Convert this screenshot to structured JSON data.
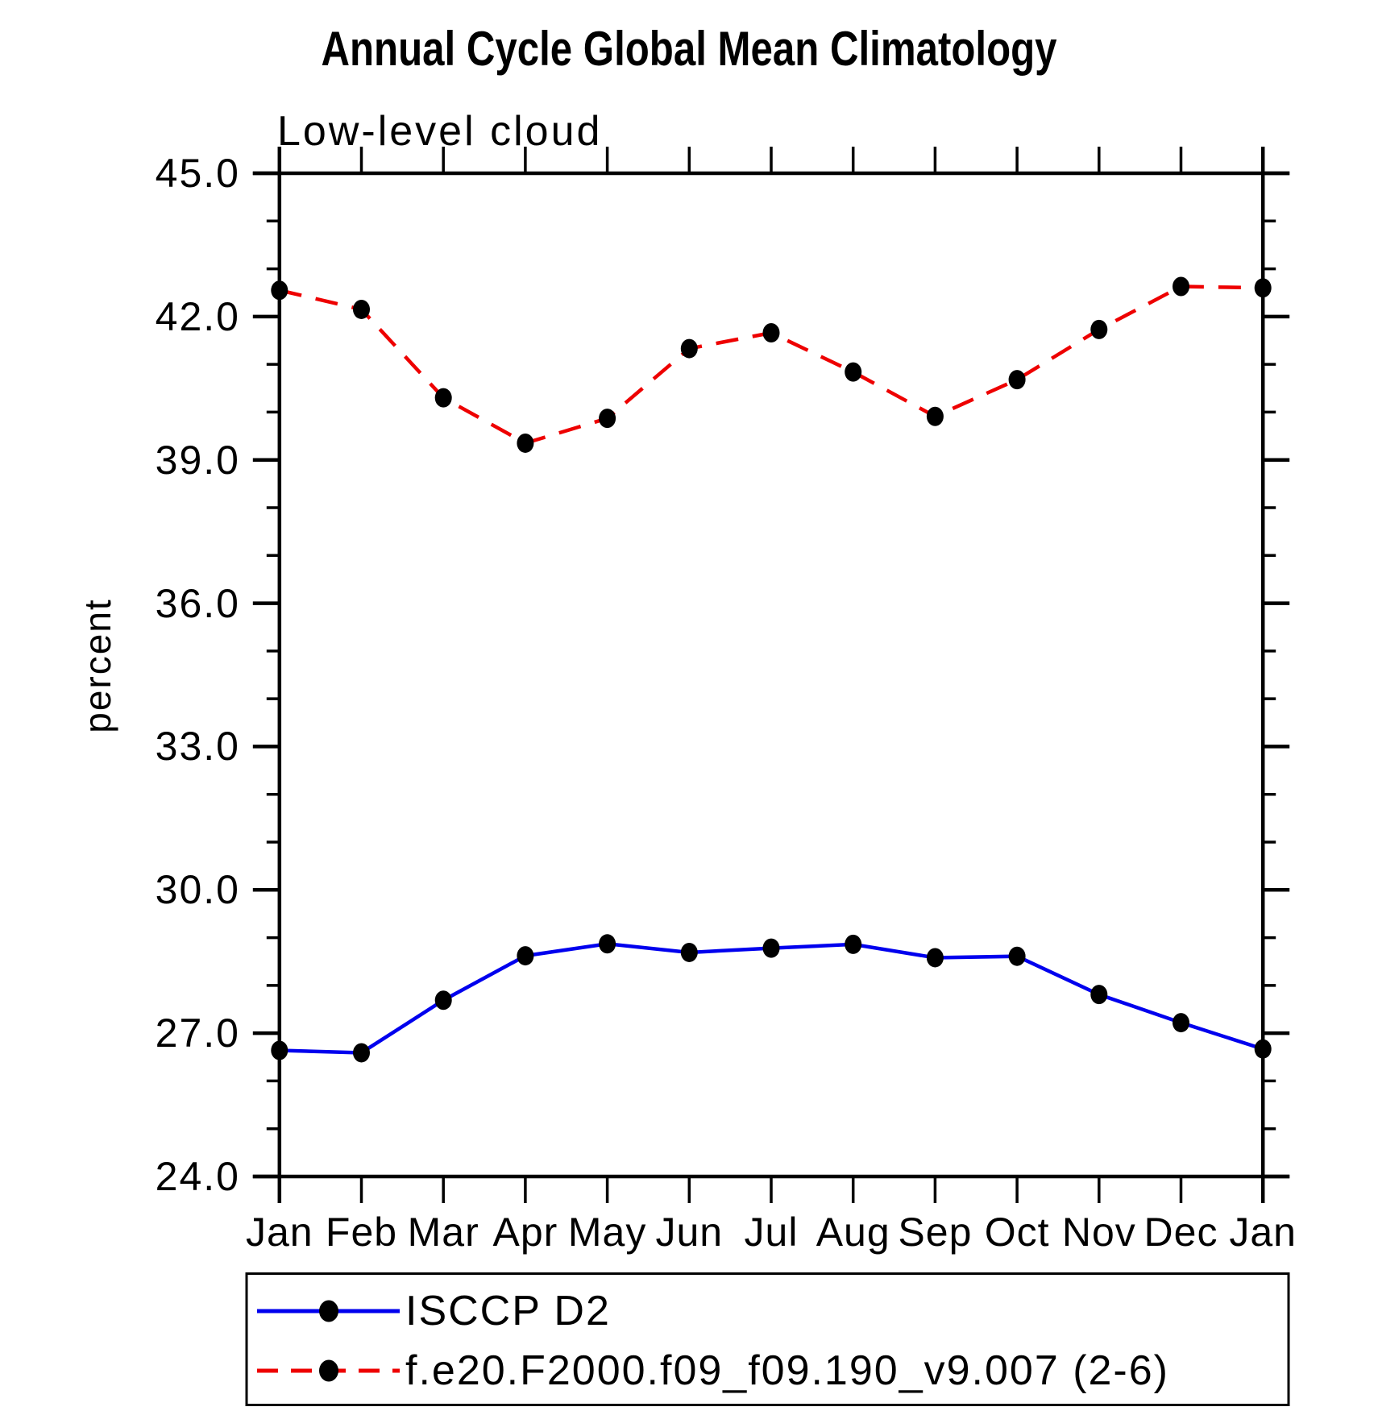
{
  "chart_data": {
    "type": "line",
    "title": "Annual Cycle Global Mean Climatology",
    "subtitle": "Low-level cloud",
    "ylabel": "percent",
    "xlabel": "",
    "categories": [
      "Jan",
      "Feb",
      "Mar",
      "Apr",
      "May",
      "Jun",
      "Jul",
      "Aug",
      "Sep",
      "Oct",
      "Nov",
      "Dec",
      "Jan"
    ],
    "series": [
      {
        "name": "ISCCP D2",
        "color": "#0000ee",
        "line_style": "solid",
        "marker": "filled-circle",
        "marker_color": "#000000",
        "values": [
          26.64,
          26.59,
          27.69,
          28.62,
          28.87,
          28.69,
          28.78,
          28.86,
          28.58,
          28.61,
          27.81,
          27.22,
          26.67
        ]
      },
      {
        "name": "f.e20.F2000.f09_f09.190_v9.007 (2-6)",
        "color": "#ee0000",
        "line_style": "dashed",
        "marker": "filled-circle",
        "marker_color": "#000000",
        "values": [
          42.55,
          42.15,
          40.3,
          39.35,
          39.87,
          41.33,
          41.66,
          40.84,
          39.91,
          40.68,
          41.73,
          42.63,
          42.6
        ]
      }
    ],
    "ylim": [
      24.0,
      45.0
    ],
    "ytick_labels": [
      "45.0",
      "42.0",
      "39.0",
      "36.0",
      "33.0",
      "30.0",
      "27.0",
      "24.0"
    ],
    "ytick_major_step": 3.0,
    "ytick_minor_step": 1.0,
    "grid": false,
    "legend_position": "bottom-left-box"
  }
}
